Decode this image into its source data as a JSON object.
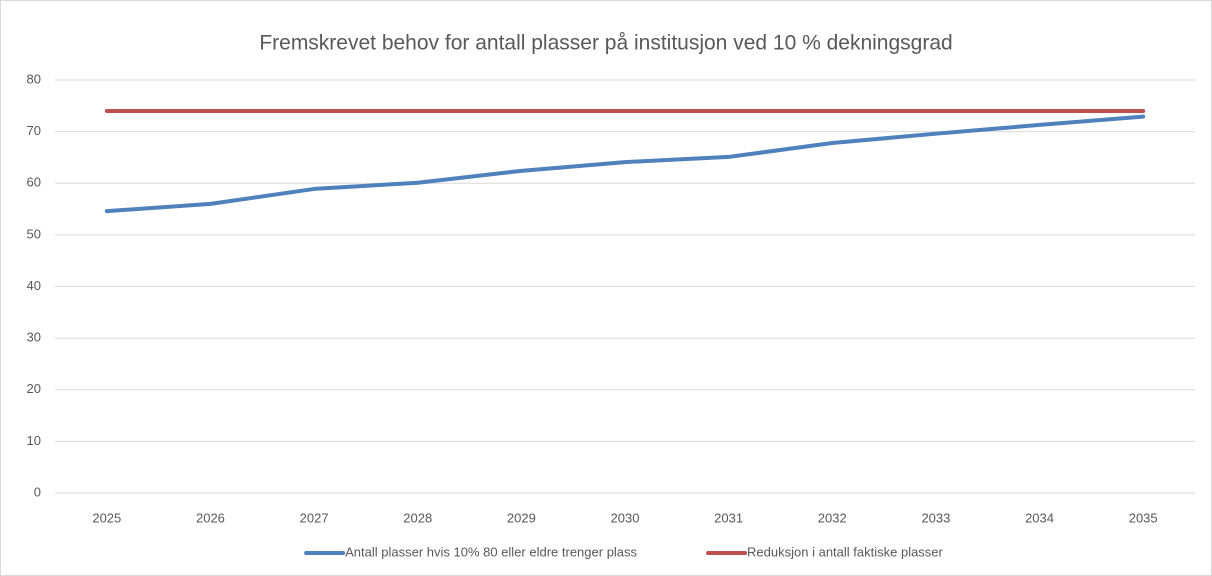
{
  "chart_data": {
    "type": "line",
    "title": "Fremskrevet behov for antall plasser på institusjon ved 10 % dekningsgrad",
    "categories": [
      "2025",
      "2026",
      "2027",
      "2028",
      "2029",
      "2030",
      "2031",
      "2032",
      "2033",
      "2034",
      "2035"
    ],
    "series": [
      {
        "name": "Antall plasser hvis 10% 80 eller eldre trenger plass",
        "color": "#4f81bd",
        "values": [
          54.6,
          56.0,
          58.9,
          60.1,
          62.4,
          64.1,
          65.1,
          67.8,
          69.6,
          71.3,
          72.9
        ]
      },
      {
        "name": "Reduksjon i antall faktiske plasser",
        "color": "#c0504d",
        "values": [
          74,
          74,
          74,
          74,
          74,
          74,
          74,
          74,
          74,
          74,
          74
        ]
      }
    ],
    "ylim": [
      0,
      80
    ],
    "yticks": [
      0,
      10,
      20,
      30,
      40,
      50,
      60,
      70,
      80
    ],
    "grid": true,
    "legend": "bottom"
  }
}
